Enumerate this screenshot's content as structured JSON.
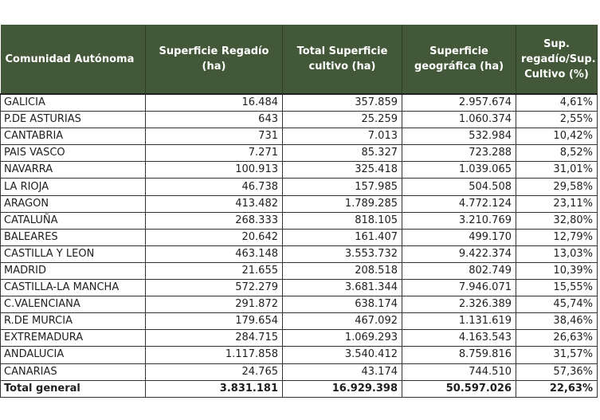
{
  "table": {
    "headers": [
      "Comunidad Autónoma",
      "Superficie Regadío (ha)",
      "Total Superficie cultivo (ha)",
      "Superficie geográfica (ha)",
      "Sup. regadío/Sup. Cultivo (%)"
    ],
    "rows": [
      [
        "GALICIA",
        "16.484",
        "357.859",
        "2.957.674",
        "4,61%"
      ],
      [
        "P.DE ASTURIAS",
        "643",
        "25.259",
        "1.060.374",
        "2,55%"
      ],
      [
        "CANTABRIA",
        "731",
        "7.013",
        "532.984",
        "10,42%"
      ],
      [
        "PAIS VASCO",
        "7.271",
        "85.327",
        "723.288",
        "8,52%"
      ],
      [
        "NAVARRA",
        "100.913",
        "325.418",
        "1.039.065",
        "31,01%"
      ],
      [
        "LA RIOJA",
        "46.738",
        "157.985",
        "504.508",
        "29,58%"
      ],
      [
        "ARAGON",
        "413.482",
        "1.789.285",
        "4.772.124",
        "23,11%"
      ],
      [
        "CATALUÑA",
        "268.333",
        "818.105",
        "3.210.769",
        "32,80%"
      ],
      [
        "BALEARES",
        "20.642",
        "161.407",
        "499.170",
        "12,79%"
      ],
      [
        "CASTILLA Y LEON",
        "463.148",
        "3.553.732",
        "9.422.374",
        "13,03%"
      ],
      [
        "MADRID",
        "21.655",
        "208.518",
        "802.749",
        "10,39%"
      ],
      [
        "CASTILLA-LA MANCHA",
        "572.279",
        "3.681.344",
        "7.946.071",
        "15,55%"
      ],
      [
        "C.VALENCIANA",
        "291.872",
        "638.174",
        "2.326.389",
        "45,74%"
      ],
      [
        "R.DE MURCIA",
        "179.654",
        "467.092",
        "1.131.619",
        "38,46%"
      ],
      [
        "EXTREMADURA",
        "284.715",
        "1.069.293",
        "4.163.543",
        "26,63%"
      ],
      [
        "ANDALUCIA",
        "1.117.858",
        "3.540.412",
        "8.759.816",
        "31,57%"
      ],
      [
        "CANARIAS",
        "24.765",
        "43.174",
        "744.510",
        "57,36%"
      ]
    ],
    "total": [
      "Total general",
      "3.831.181",
      "16.929.398",
      "50.597.026",
      "22,63%"
    ]
  },
  "colors": {
    "header_bg": "#435838",
    "header_text": "#ffffff",
    "text": "#1e1e1e"
  }
}
